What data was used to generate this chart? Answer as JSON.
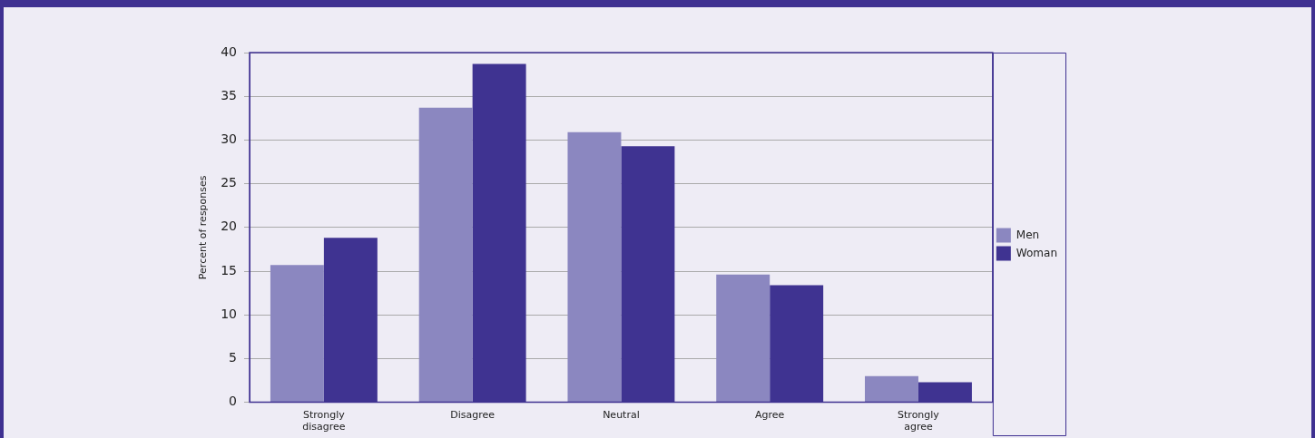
{
  "chart_data": {
    "type": "bar",
    "ylabel": "Percent of responses",
    "categories": [
      "Strongly disagree",
      "Disagree",
      "Neutral",
      "Agree",
      "Strongly agree"
    ],
    "series": [
      {
        "name": "Men",
        "color": "#8b87c0",
        "values": [
          15.7,
          33.7,
          30.9,
          14.6,
          3.0
        ]
      },
      {
        "name": "Woman",
        "color": "#3f3391",
        "values": [
          18.8,
          38.7,
          29.3,
          13.4,
          2.3
        ]
      }
    ],
    "ylim": [
      0,
      40
    ],
    "yticks": [
      0,
      5,
      10,
      15,
      20,
      25,
      30,
      35,
      40
    ],
    "grid": "y",
    "legend": "right"
  }
}
